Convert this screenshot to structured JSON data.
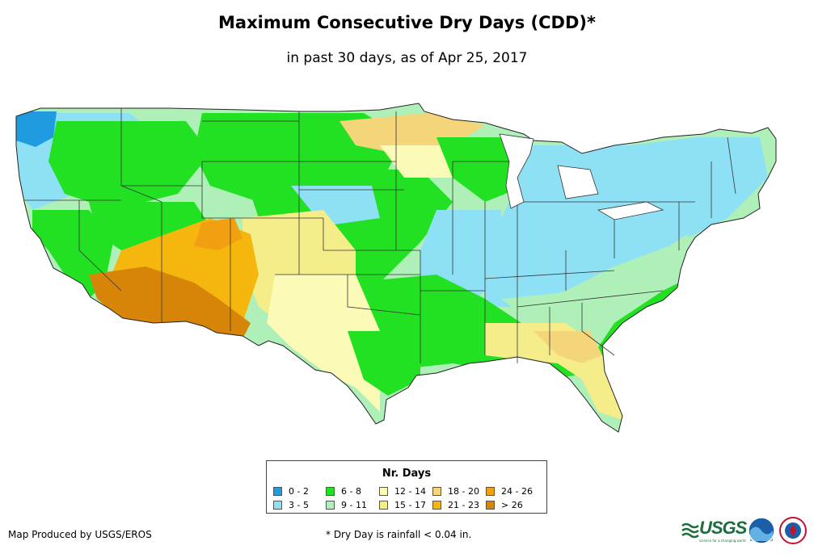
{
  "header": {
    "title": "Maximum Consecutive Dry Days (CDD)*",
    "subtitle": "in past 30 days, as of Apr 25, 2017"
  },
  "legend": {
    "title": "Nr. Days",
    "items": [
      {
        "label": "0 - 2",
        "color": "#1f9be0"
      },
      {
        "label": "3 - 5",
        "color": "#8ee0f5"
      },
      {
        "label": "6 - 8",
        "color": "#22e022"
      },
      {
        "label": "9 - 11",
        "color": "#aef0b8"
      },
      {
        "label": "12 - 14",
        "color": "#fbfbb7"
      },
      {
        "label": "15 - 17",
        "color": "#f5ec8a"
      },
      {
        "label": "18 - 20",
        "color": "#f5d57a"
      },
      {
        "label": "21 - 23",
        "color": "#f5b70e"
      },
      {
        "label": "24 - 26",
        "color": "#f0a010"
      },
      {
        "label": "> 26",
        "color": "#d68508"
      }
    ]
  },
  "footer": {
    "credit": "Map Produced by USGS/EROS",
    "footnote": "* Dry Day is rainfall < 0.04 in."
  },
  "logos": {
    "usgs": "USGS",
    "usgs_tagline": "science for a changing world"
  }
}
